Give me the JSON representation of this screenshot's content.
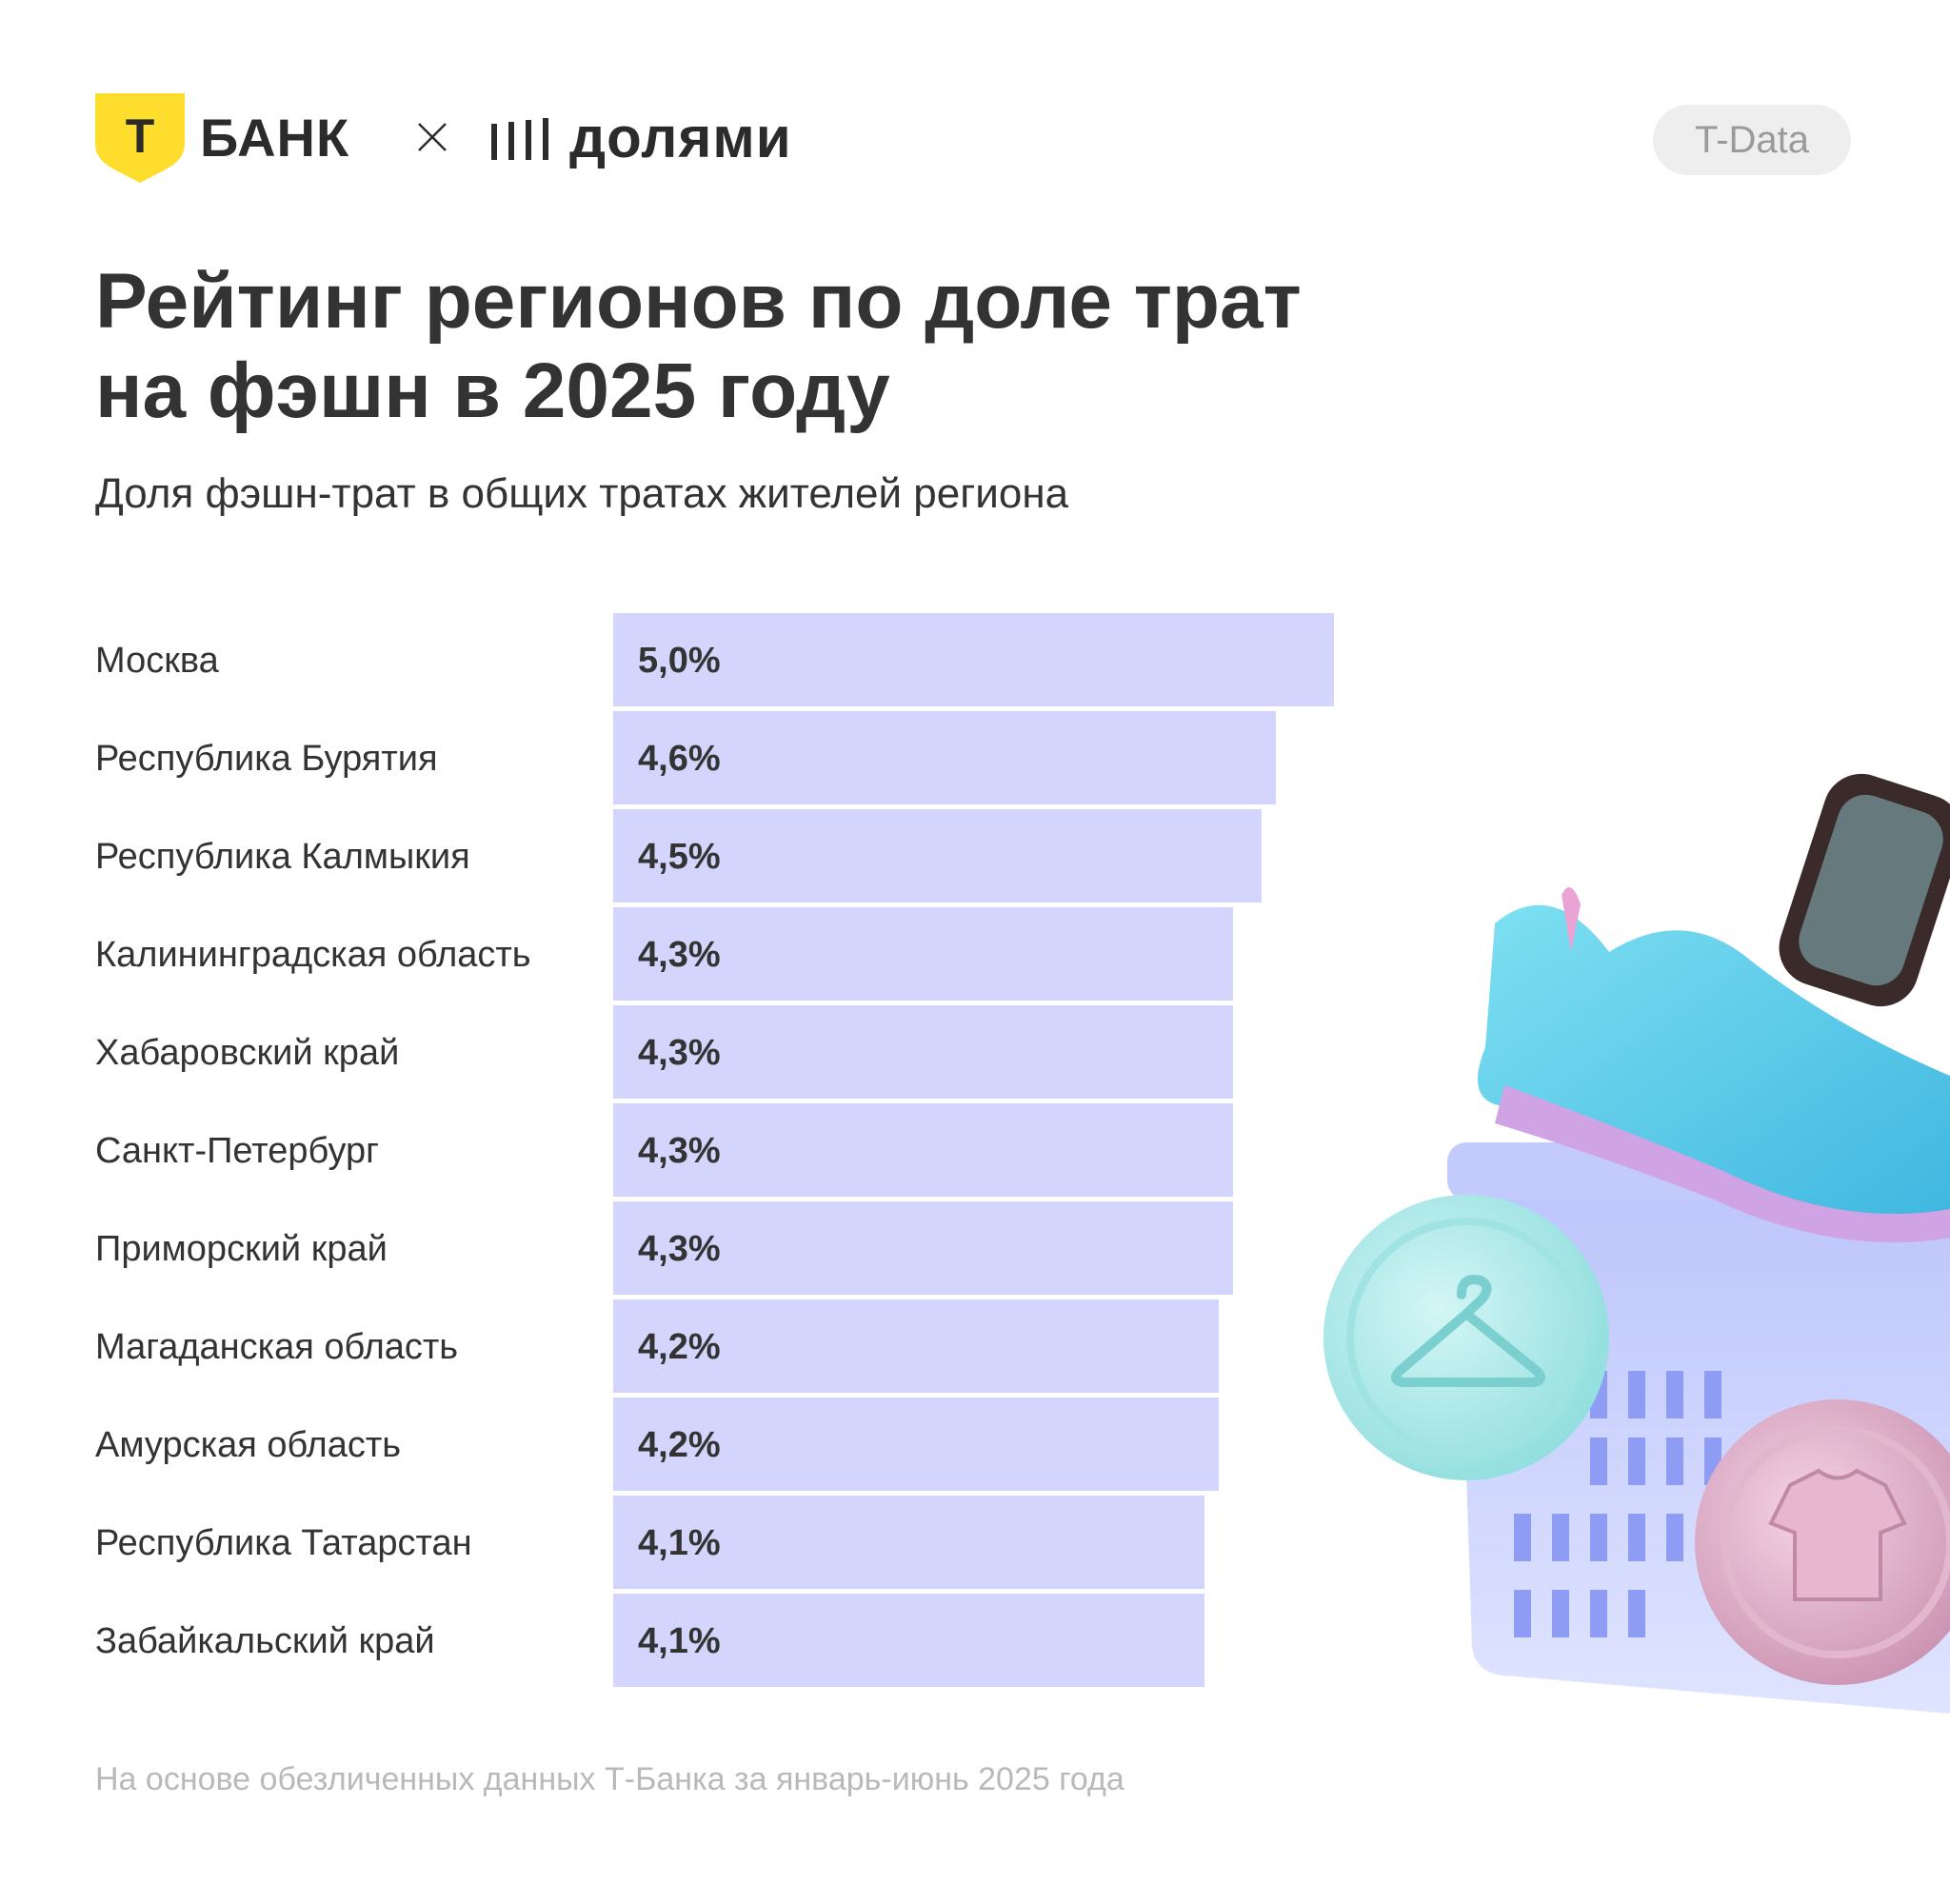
{
  "header": {
    "tbank_logo_text": "БАНК",
    "tbank_shield_letter": "Т",
    "separator": "×",
    "dolyami_logo_text": "долями",
    "badge": "T-Data"
  },
  "title_line1": "Рейтинг регионов по доле трат",
  "title_line2": "на фэшн в 2025 году",
  "footnote": "На основе обезличенных данных Т-Банка за январь-июнь 2025 года",
  "colors": {
    "bar": "#d3d5fc",
    "brand_yellow": "#ffdd2d",
    "text": "#333333"
  },
  "chart_data": {
    "type": "bar",
    "orientation": "horizontal",
    "title": "Рейтинг регионов по доле трат на фэшн в 2025 году",
    "subtitle": "Доля фэшн-трат в общих тратах жителей региона",
    "xlabel": "",
    "ylabel": "",
    "unit": "%",
    "grid": false,
    "legend": "none",
    "categories": [
      "Москва",
      "Республика Бурятия",
      "Республика Калмыкия",
      "Калининградская область",
      "Хабаровский край",
      "Санкт-Петербург",
      "Приморский край",
      "Магаданская область",
      "Амурская область",
      "Республика Татарстан",
      "Забайкальский край"
    ],
    "values": [
      5.0,
      4.6,
      4.5,
      4.3,
      4.3,
      4.3,
      4.3,
      4.2,
      4.2,
      4.1,
      4.1
    ],
    "value_labels": [
      "5,0%",
      "4,6%",
      "4,5%",
      "4,3%",
      "4,3%",
      "4,3%",
      "4,3%",
      "4,2%",
      "4,2%",
      "4,1%",
      "4,1%"
    ],
    "xlim": [
      0,
      5.0
    ]
  }
}
